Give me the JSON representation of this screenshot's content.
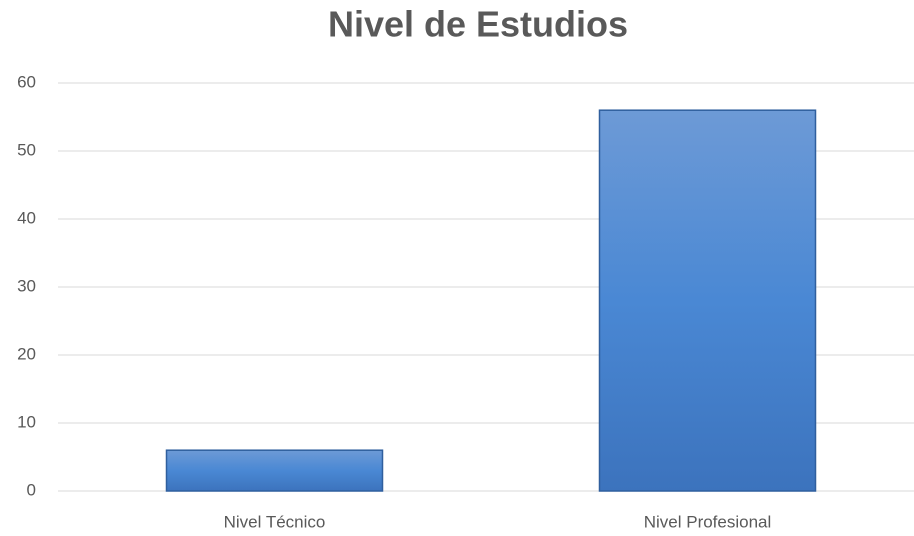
{
  "chart_data": {
    "type": "bar",
    "title": "Nivel de Estudios",
    "categories": [
      "Nivel Técnico",
      "Nivel Profesional"
    ],
    "values": [
      6,
      56
    ],
    "color": "#4f86d0",
    "ylim": [
      0,
      60
    ],
    "yticks": [
      0,
      10,
      20,
      30,
      40,
      50,
      60
    ],
    "grid": true
  }
}
